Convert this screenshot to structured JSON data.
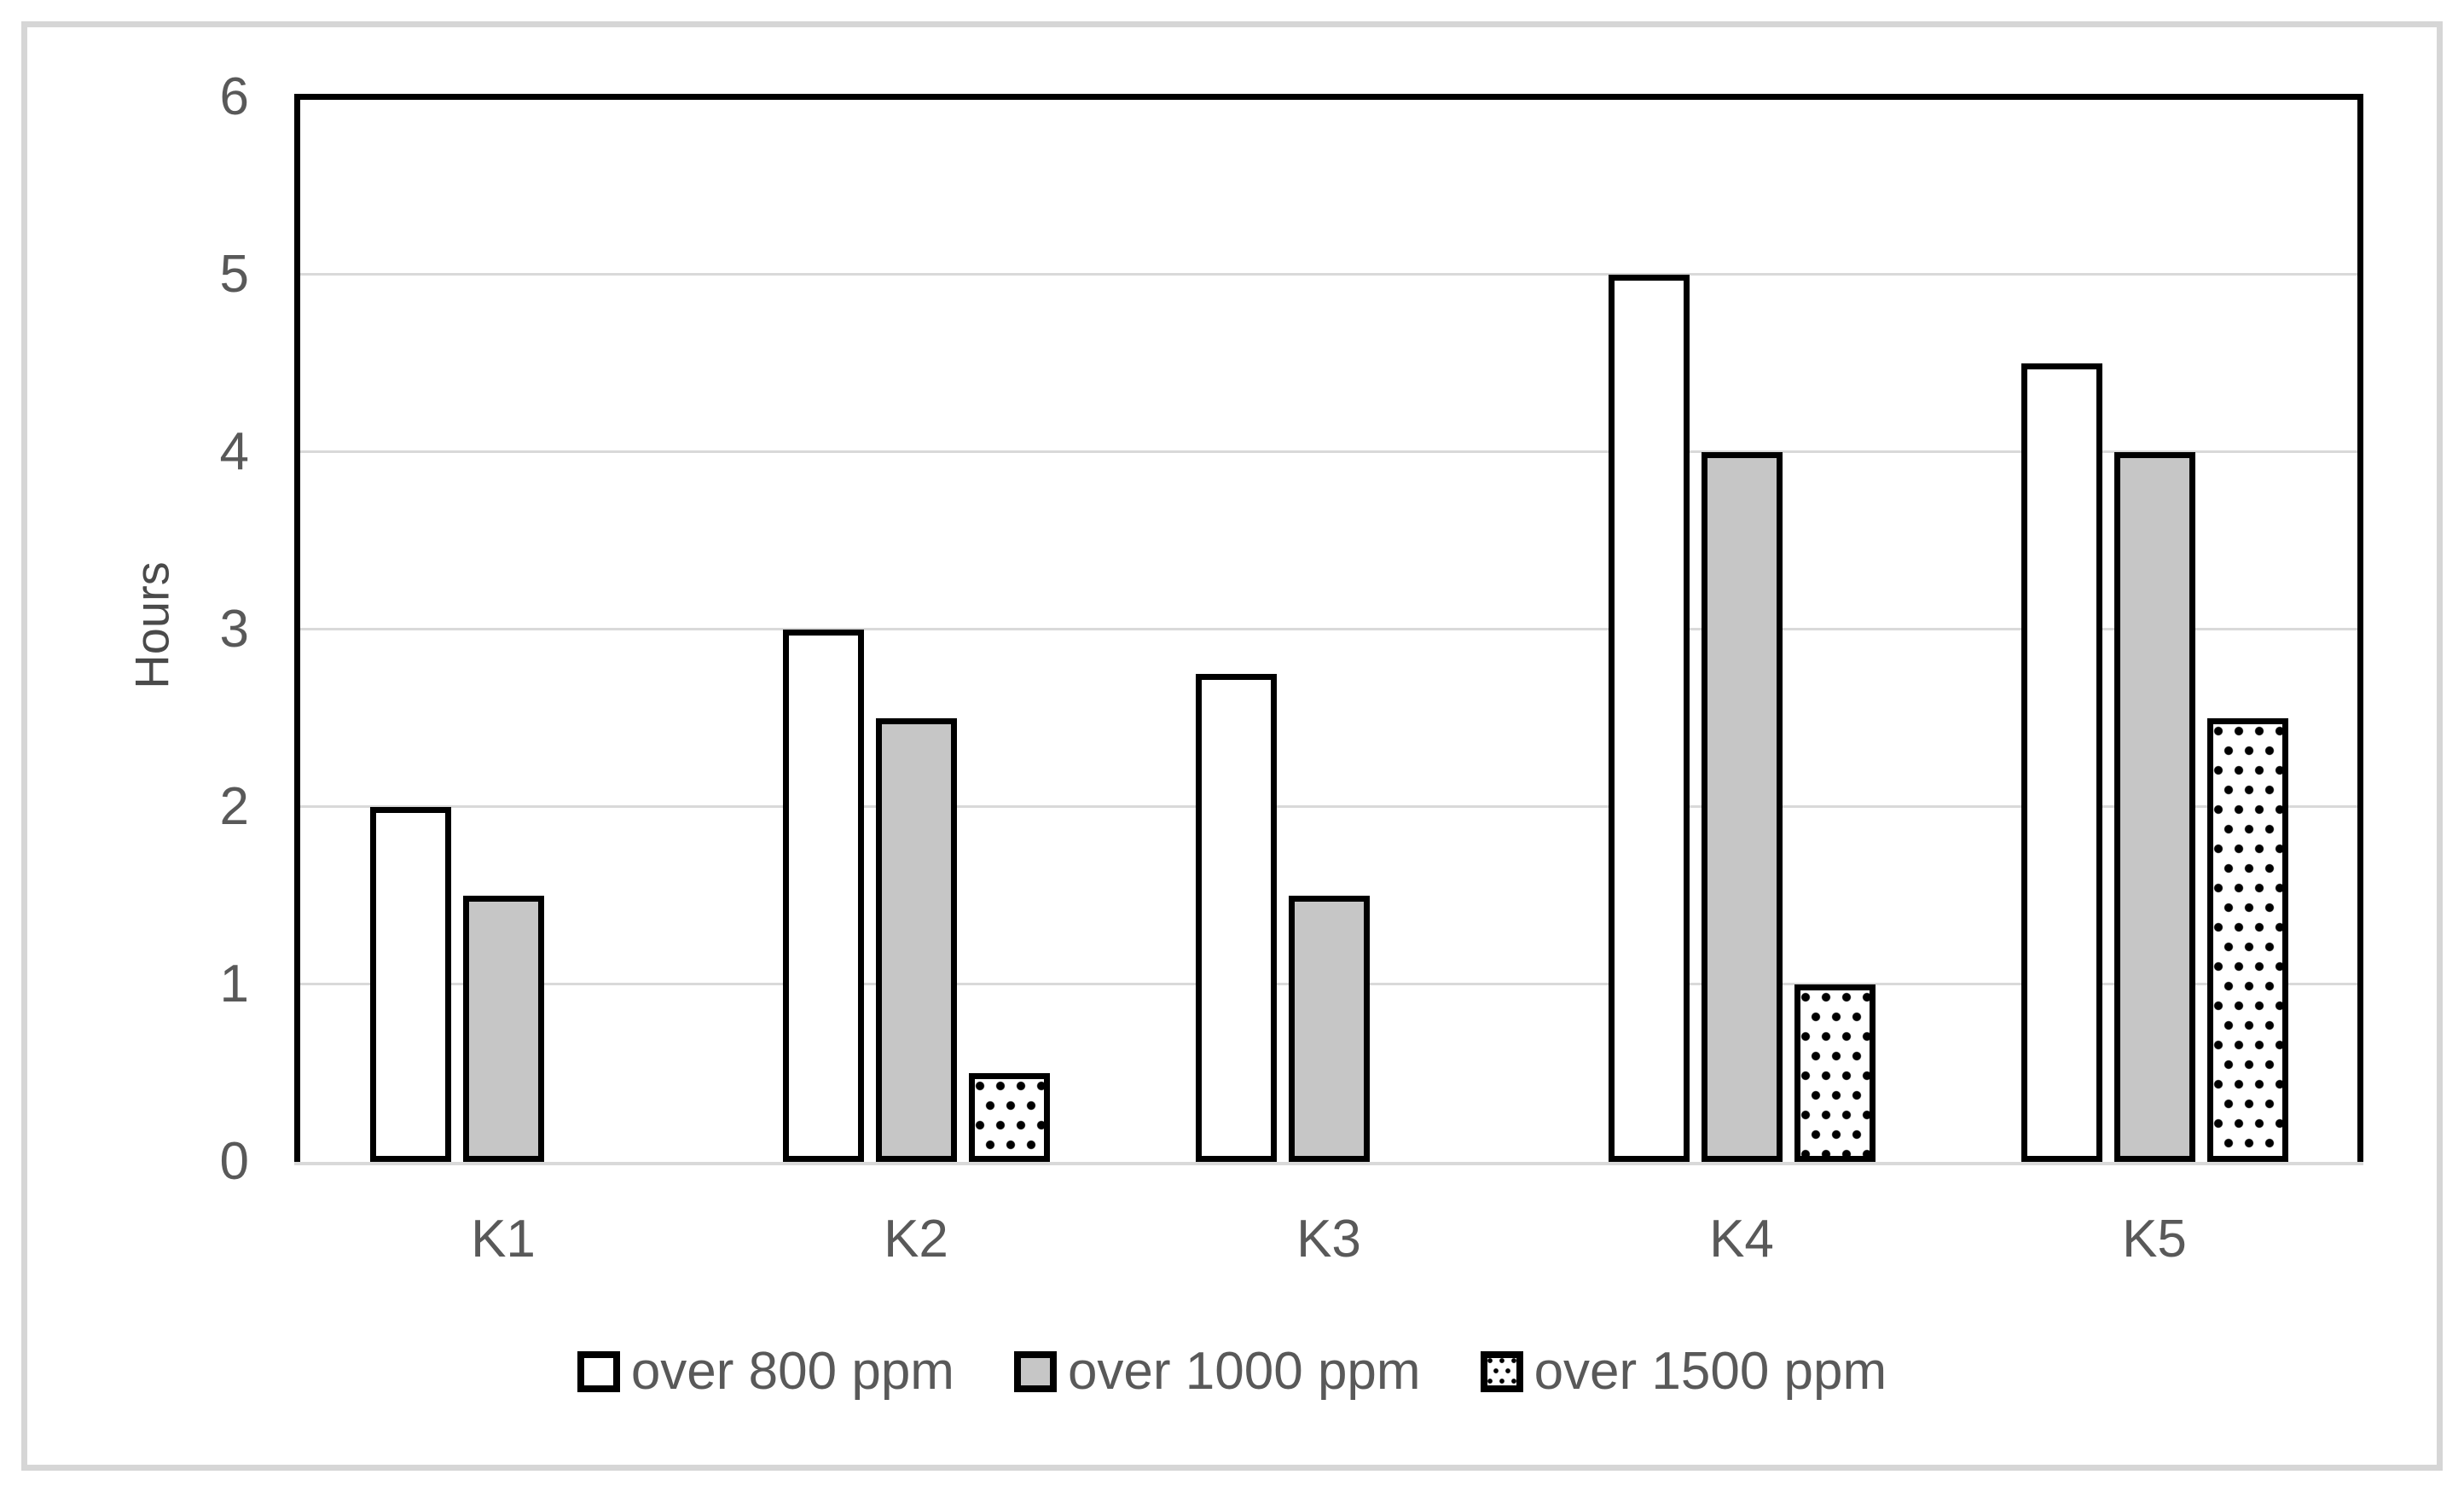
{
  "chart_data": {
    "type": "bar",
    "title": "",
    "xlabel": "",
    "ylabel": "Hours",
    "ylim": [
      0,
      6
    ],
    "yticks": [
      0,
      1,
      2,
      3,
      4,
      5,
      6
    ],
    "grid": true,
    "legend_position": "bottom",
    "categories": [
      "K1",
      "K2",
      "K3",
      "K4",
      "K5"
    ],
    "series": [
      {
        "name": "over 800 ppm",
        "fill": "white",
        "values": [
          2,
          3,
          2.75,
          5,
          4.5
        ]
      },
      {
        "name": "over 1000 ppm",
        "fill": "gray",
        "values": [
          1.5,
          2.5,
          1.5,
          4,
          4
        ]
      },
      {
        "name": "over 1500 ppm",
        "fill": "dotted",
        "values": [
          0,
          0.5,
          0,
          1,
          2.5
        ]
      }
    ]
  },
  "colors": {
    "bar_outline": "#000000",
    "bar_white_fill": "#ffffff",
    "bar_gray_fill": "#c6c6c6",
    "bar_dotted_fill": "#ffffff",
    "gridline": "#d9d9d9",
    "axis_line": "#d9d9d9",
    "plot_frame": "#000000",
    "axis_text": "#595959",
    "page_border": "#d6d6d6",
    "background": "#ffffff"
  }
}
